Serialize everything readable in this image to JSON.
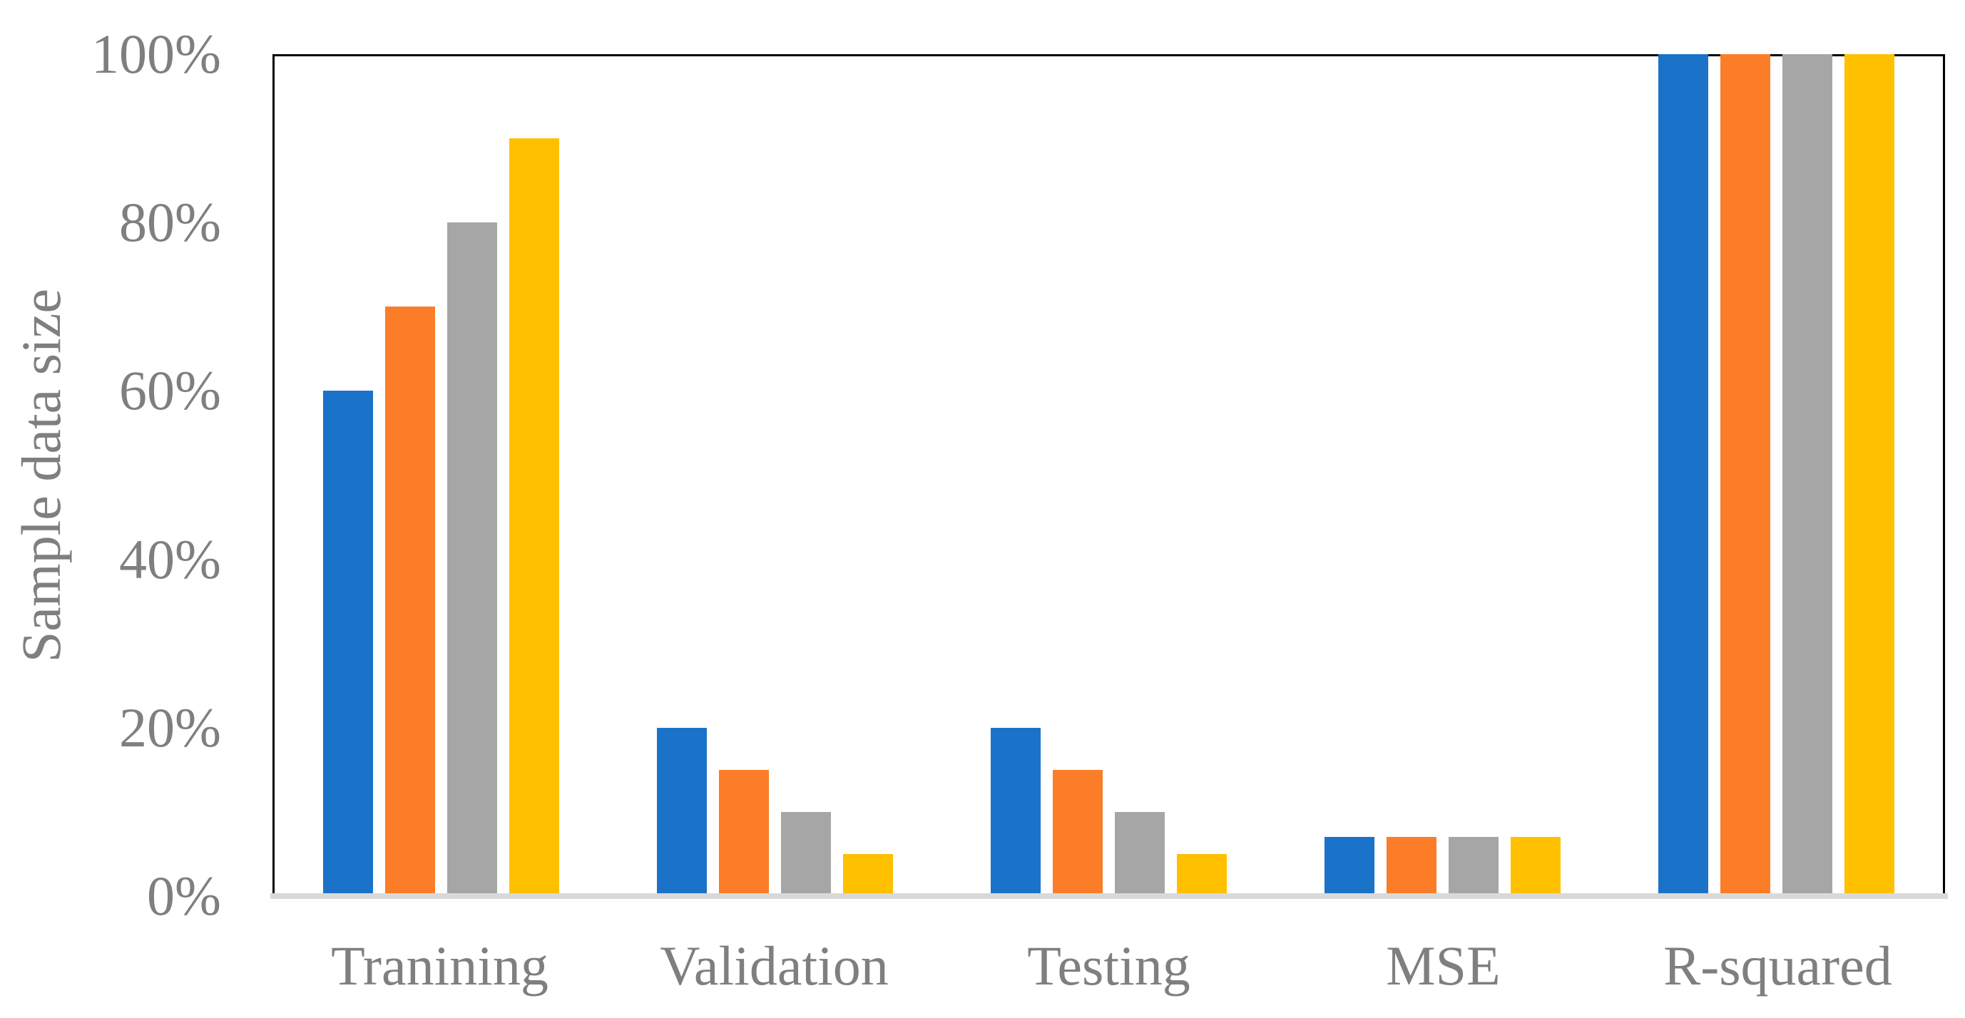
{
  "chart_data": {
    "type": "bar",
    "title": "",
    "ylabel": "Sample data size",
    "xlabel": "",
    "categories": [
      "Tranining",
      "Validation",
      "Testing",
      "MSE",
      "R-squared"
    ],
    "series": [
      {
        "name": "blue",
        "color": "#1a73c8",
        "values": [
          60,
          20,
          20,
          7,
          100
        ]
      },
      {
        "name": "orange",
        "color": "#fb7d27",
        "values": [
          70,
          15,
          15,
          7,
          100
        ]
      },
      {
        "name": "gray",
        "color": "#a6a6a6",
        "values": [
          80,
          10,
          10,
          7,
          100
        ]
      },
      {
        "name": "yellow",
        "color": "#ffc000",
        "values": [
          90,
          5,
          5,
          7,
          100
        ]
      }
    ],
    "y_ticks": [
      {
        "label": "0%",
        "value": 0
      },
      {
        "label": "20%",
        "value": 20
      },
      {
        "label": "40%",
        "value": 40
      },
      {
        "label": "60%",
        "value": 60
      },
      {
        "label": "80%",
        "value": 80
      },
      {
        "label": "100%",
        "value": 100
      }
    ],
    "ylim": [
      0,
      100
    ],
    "grid": false,
    "legend": false,
    "colors": {
      "plot_border": "#000000",
      "baseline": "#d9d9d9",
      "label_text": "#7f7f7f",
      "background": "#ffffff"
    }
  }
}
